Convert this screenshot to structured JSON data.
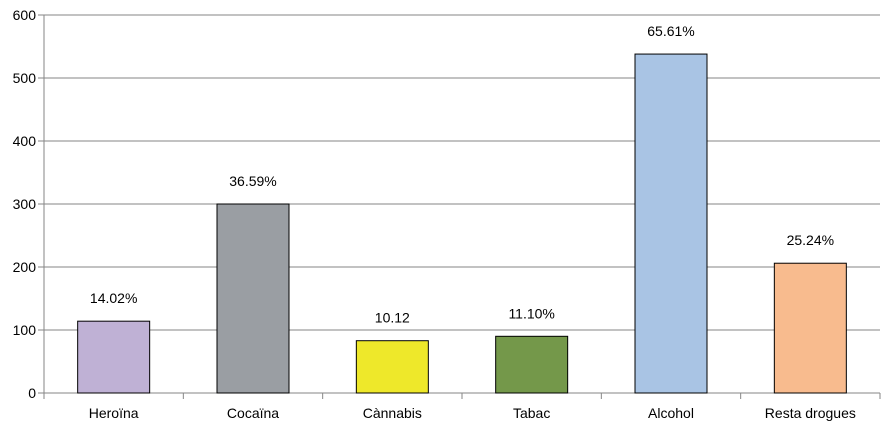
{
  "chart_data": {
    "type": "bar",
    "categories": [
      "Heroïna",
      "Cocaïna",
      "Cànnabis",
      "Tabac",
      "Alcohol",
      "Resta drogues"
    ],
    "values": [
      114,
      300,
      83,
      90,
      538,
      206
    ],
    "data_labels": [
      "14.02%",
      "36.59%",
      "10.12",
      "11.10%",
      "65.61%",
      "25.24%"
    ],
    "colors": [
      "#bfb1d5",
      "#9a9ea3",
      "#eee82a",
      "#74984a",
      "#a9c4e4",
      "#f8bb8e"
    ],
    "ylim": [
      0,
      600
    ],
    "y_ticks": [
      0,
      100,
      200,
      300,
      400,
      500,
      600
    ],
    "grid": true,
    "title": "",
    "xlabel": "",
    "ylabel": ""
  }
}
